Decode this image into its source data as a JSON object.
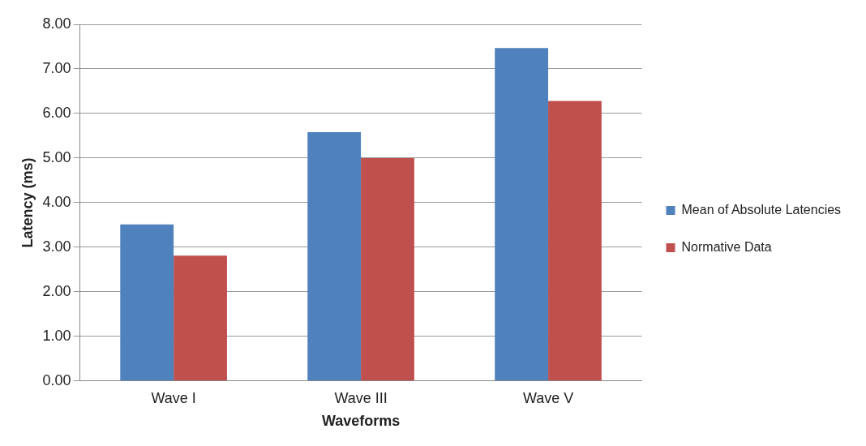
{
  "chart_data": {
    "type": "bar",
    "xlabel": "Waveforms",
    "ylabel": "Latency (ms)",
    "categories": [
      "Wave I",
      "Wave III",
      "Wave V"
    ],
    "series": [
      {
        "name": "Mean of Absolute Latencies",
        "color": "#4f81bd",
        "values": [
          3.51,
          5.58,
          7.47
        ]
      },
      {
        "name": "Normative Data",
        "color": "#c0504d",
        "values": [
          2.81,
          5.0,
          6.28
        ]
      }
    ],
    "ylim": [
      0,
      8
    ],
    "yticks": [
      {
        "value": 0,
        "label": "0.00"
      },
      {
        "value": 1,
        "label": "1.00"
      },
      {
        "value": 2,
        "label": "2.00"
      },
      {
        "value": 3,
        "label": "3.00"
      },
      {
        "value": 4,
        "label": "4.00"
      },
      {
        "value": 5,
        "label": "5.00"
      },
      {
        "value": 6,
        "label": "6.00"
      },
      {
        "value": 7,
        "label": "7.00"
      },
      {
        "value": 8,
        "label": "8.00"
      }
    ],
    "grid": "y",
    "legend": "right"
  }
}
